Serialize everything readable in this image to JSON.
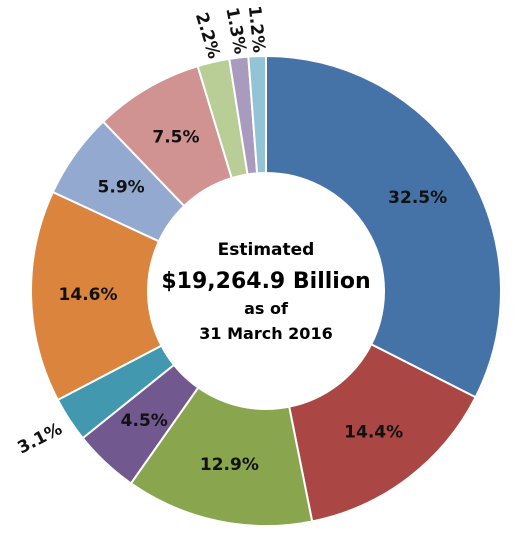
{
  "chart_data": {
    "type": "pie",
    "donut": true,
    "categories": [
      "",
      "",
      "",
      "",
      "",
      "",
      "",
      "",
      "",
      "",
      ""
    ],
    "values": [
      32.5,
      14.4,
      12.9,
      4.5,
      3.1,
      14.6,
      5.9,
      7.5,
      2.2,
      1.3,
      1.2
    ],
    "labels": [
      "32.5%",
      "14.4%",
      "12.9%",
      "4.5%",
      "3.1%",
      "14.6%",
      "5.9%",
      "7.5%",
      "2.2%",
      "1.3%",
      "1.2%"
    ],
    "colors": [
      "#4572A7",
      "#AA4643",
      "#89A54E",
      "#71588F",
      "#4198AF",
      "#DB843D",
      "#93A9CF",
      "#D19392",
      "#B9CD96",
      "#A99BBD",
      "#92C4D6"
    ],
    "center": {
      "line1": "Estimated",
      "line2": "$19,264.9 Billion",
      "line3": "as of",
      "line4": "31 March 2016"
    },
    "legend": "none"
  }
}
